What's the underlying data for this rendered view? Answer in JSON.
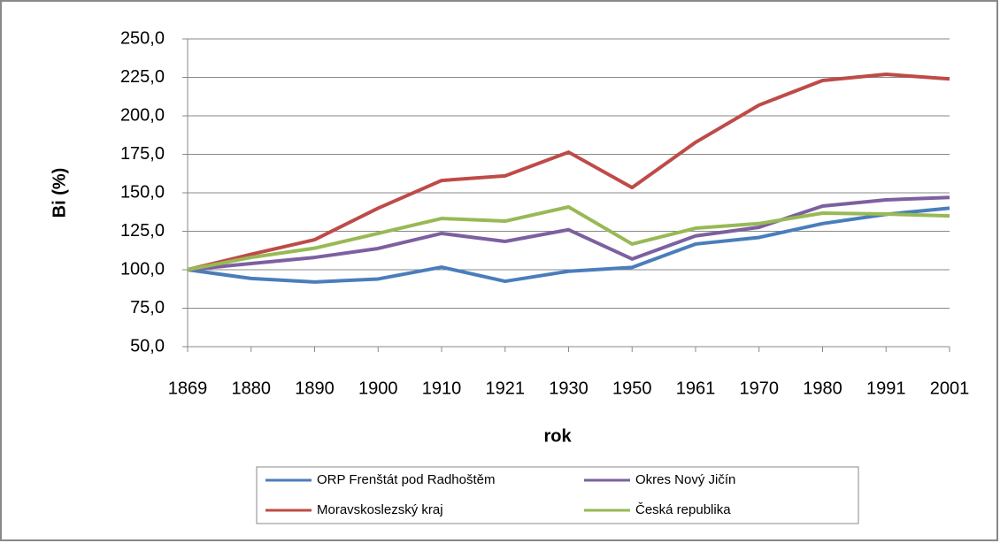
{
  "chart_data": {
    "type": "line",
    "x_label": "rok",
    "y_label": "Bi (%)",
    "categories": [
      "1869",
      "1880",
      "1890",
      "1900",
      "1910",
      "1921",
      "1930",
      "1950",
      "1961",
      "1970",
      "1980",
      "1991",
      "2001"
    ],
    "series": [
      {
        "name": "ORP Frenštát pod Radhoštěm",
        "color": "#4a7ebb",
        "values": [
          100,
          94.3,
          92,
          94,
          101.7,
          92.5,
          99,
          101.5,
          116.7,
          121,
          130,
          136,
          140
        ]
      },
      {
        "name": "Okres Nový Jičín",
        "color": "#7d60a0",
        "values": [
          100,
          104,
          108,
          113.8,
          123.6,
          118.4,
          126,
          107,
          122,
          127.6,
          141.4,
          145.4,
          147
        ]
      },
      {
        "name": "Moravskoslezský kraj",
        "color": "#be4b48",
        "values": [
          100,
          110,
          119.5,
          140,
          158,
          161,
          176.4,
          153.4,
          182.8,
          207,
          223,
          227,
          224
        ]
      },
      {
        "name": "Česká republika",
        "color": "#98b954",
        "values": [
          100,
          108,
          114,
          123.6,
          133.3,
          131.6,
          140.8,
          116.7,
          127,
          130,
          136.8,
          136.2,
          135
        ]
      }
    ],
    "ylim": [
      50,
      250
    ],
    "yticks": [
      {
        "value": 50,
        "label": "50,0"
      },
      {
        "value": 75,
        "label": "75,0"
      },
      {
        "value": 100,
        "label": "100,0"
      },
      {
        "value": 125,
        "label": "125,0"
      },
      {
        "value": 150,
        "label": "150,0"
      },
      {
        "value": 175,
        "label": "175,0"
      },
      {
        "value": 200,
        "label": "200,0"
      },
      {
        "value": 225,
        "label": "225,0"
      },
      {
        "value": 250,
        "label": "250,0"
      }
    ],
    "grid": true,
    "legend": "bottom"
  }
}
